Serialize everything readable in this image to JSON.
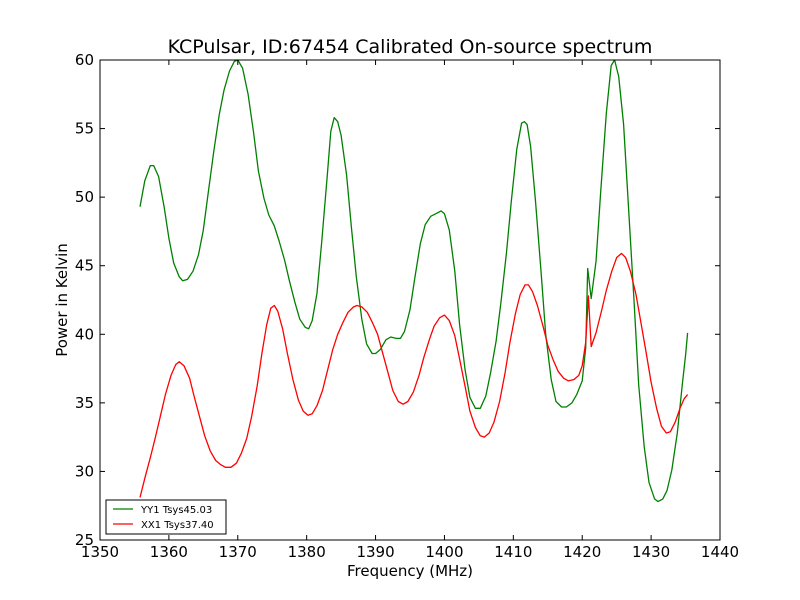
{
  "chart_data": {
    "type": "line",
    "title": "KCPulsar, ID:67454 Calibrated On-source spectrum",
    "xlabel": "Frequency (MHz)",
    "ylabel": "Power in Kelvin",
    "xlim": [
      1350,
      1440
    ],
    "ylim": [
      25,
      60
    ],
    "x_ticks": [
      1350,
      1360,
      1370,
      1380,
      1390,
      1400,
      1410,
      1420,
      1430,
      1440
    ],
    "y_ticks": [
      25,
      30,
      35,
      40,
      45,
      50,
      55,
      60
    ],
    "grid": false,
    "legend_position": "lower-left",
    "series": [
      {
        "name": "YY1 Tsys45.03",
        "color": "#008000",
        "points": [
          [
            1355.8,
            49.3
          ],
          [
            1356.5,
            51.2
          ],
          [
            1357.3,
            52.3
          ],
          [
            1357.8,
            52.3
          ],
          [
            1358.5,
            51.5
          ],
          [
            1359.3,
            49.3
          ],
          [
            1360.0,
            47.0
          ],
          [
            1360.7,
            45.2
          ],
          [
            1361.5,
            44.2
          ],
          [
            1362.0,
            43.9
          ],
          [
            1362.7,
            44.0
          ],
          [
            1363.5,
            44.6
          ],
          [
            1364.3,
            45.8
          ],
          [
            1365.0,
            47.6
          ],
          [
            1365.7,
            50.3
          ],
          [
            1366.5,
            53.3
          ],
          [
            1367.3,
            56.0
          ],
          [
            1368.0,
            57.8
          ],
          [
            1368.8,
            59.2
          ],
          [
            1369.5,
            59.9
          ],
          [
            1370.0,
            60.0
          ],
          [
            1370.7,
            59.4
          ],
          [
            1371.5,
            57.5
          ],
          [
            1372.3,
            54.7
          ],
          [
            1373.0,
            51.9
          ],
          [
            1373.8,
            49.9
          ],
          [
            1374.5,
            48.7
          ],
          [
            1375.3,
            47.9
          ],
          [
            1376.0,
            46.8
          ],
          [
            1376.8,
            45.4
          ],
          [
            1377.5,
            43.9
          ],
          [
            1378.3,
            42.3
          ],
          [
            1379.0,
            41.1
          ],
          [
            1379.8,
            40.5
          ],
          [
            1380.3,
            40.4
          ],
          [
            1380.8,
            41.0
          ],
          [
            1381.5,
            43.0
          ],
          [
            1382.2,
            46.8
          ],
          [
            1383.0,
            51.6
          ],
          [
            1383.5,
            54.8
          ],
          [
            1384.0,
            55.8
          ],
          [
            1384.5,
            55.5
          ],
          [
            1385.0,
            54.5
          ],
          [
            1385.8,
            51.6
          ],
          [
            1386.5,
            47.8
          ],
          [
            1387.2,
            44.2
          ],
          [
            1388.0,
            41.1
          ],
          [
            1388.7,
            39.3
          ],
          [
            1389.5,
            38.6
          ],
          [
            1390.0,
            38.6
          ],
          [
            1390.7,
            38.9
          ],
          [
            1391.5,
            39.6
          ],
          [
            1392.2,
            39.8
          ],
          [
            1393.0,
            39.7
          ],
          [
            1393.6,
            39.7
          ],
          [
            1394.2,
            40.2
          ],
          [
            1395.0,
            41.8
          ],
          [
            1395.7,
            44.1
          ],
          [
            1396.5,
            46.6
          ],
          [
            1397.2,
            48.0
          ],
          [
            1398.0,
            48.6
          ],
          [
            1398.8,
            48.8
          ],
          [
            1399.5,
            49.0
          ],
          [
            1400.0,
            48.8
          ],
          [
            1400.7,
            47.6
          ],
          [
            1401.5,
            44.6
          ],
          [
            1402.2,
            40.7
          ],
          [
            1403.0,
            37.4
          ],
          [
            1403.7,
            35.4
          ],
          [
            1404.5,
            34.6
          ],
          [
            1405.2,
            34.6
          ],
          [
            1406.0,
            35.5
          ],
          [
            1406.7,
            37.2
          ],
          [
            1407.5,
            39.5
          ],
          [
            1408.2,
            42.3
          ],
          [
            1409.0,
            45.9
          ],
          [
            1409.7,
            49.7
          ],
          [
            1410.5,
            53.5
          ],
          [
            1411.2,
            55.4
          ],
          [
            1411.6,
            55.5
          ],
          [
            1412.0,
            55.3
          ],
          [
            1412.5,
            53.7
          ],
          [
            1413.2,
            49.8
          ],
          [
            1414.0,
            44.7
          ],
          [
            1414.7,
            40.0
          ],
          [
            1415.5,
            36.7
          ],
          [
            1416.2,
            35.1
          ],
          [
            1417.0,
            34.7
          ],
          [
            1417.7,
            34.7
          ],
          [
            1418.5,
            35.0
          ],
          [
            1419.2,
            35.6
          ],
          [
            1420.0,
            36.6
          ],
          [
            1420.5,
            39.0
          ],
          [
            1420.8,
            44.8
          ],
          [
            1421.3,
            42.6
          ],
          [
            1422.0,
            45.3
          ],
          [
            1422.7,
            50.5
          ],
          [
            1423.5,
            56.1
          ],
          [
            1424.2,
            59.6
          ],
          [
            1424.7,
            60.0
          ],
          [
            1425.3,
            58.8
          ],
          [
            1426.0,
            55.3
          ],
          [
            1426.7,
            49.4
          ],
          [
            1427.5,
            42.6
          ],
          [
            1428.2,
            36.3
          ],
          [
            1429.0,
            31.8
          ],
          [
            1429.7,
            29.2
          ],
          [
            1430.5,
            28.0
          ],
          [
            1431.0,
            27.8
          ],
          [
            1431.7,
            28.0
          ],
          [
            1432.3,
            28.6
          ],
          [
            1433.0,
            30.1
          ],
          [
            1433.8,
            32.8
          ],
          [
            1434.5,
            36.2
          ],
          [
            1435.0,
            38.5
          ],
          [
            1435.3,
            40.1
          ]
        ]
      },
      {
        "name": "XX1 Tsys37.40",
        "color": "#ff0000",
        "points": [
          [
            1355.8,
            28.1
          ],
          [
            1356.5,
            29.5
          ],
          [
            1357.3,
            31.0
          ],
          [
            1358.0,
            32.4
          ],
          [
            1358.8,
            34.1
          ],
          [
            1359.5,
            35.6
          ],
          [
            1360.3,
            37.0
          ],
          [
            1361.0,
            37.8
          ],
          [
            1361.5,
            38.0
          ],
          [
            1362.2,
            37.7
          ],
          [
            1363.0,
            36.8
          ],
          [
            1363.7,
            35.4
          ],
          [
            1364.5,
            33.9
          ],
          [
            1365.2,
            32.6
          ],
          [
            1366.0,
            31.5
          ],
          [
            1366.8,
            30.8
          ],
          [
            1367.5,
            30.5
          ],
          [
            1368.2,
            30.3
          ],
          [
            1369.0,
            30.3
          ],
          [
            1369.8,
            30.6
          ],
          [
            1370.5,
            31.3
          ],
          [
            1371.3,
            32.4
          ],
          [
            1372.0,
            34.0
          ],
          [
            1372.8,
            36.2
          ],
          [
            1373.5,
            38.6
          ],
          [
            1374.2,
            40.7
          ],
          [
            1374.8,
            41.9
          ],
          [
            1375.3,
            42.1
          ],
          [
            1375.8,
            41.7
          ],
          [
            1376.5,
            40.4
          ],
          [
            1377.2,
            38.6
          ],
          [
            1378.0,
            36.7
          ],
          [
            1378.8,
            35.2
          ],
          [
            1379.5,
            34.4
          ],
          [
            1380.2,
            34.1
          ],
          [
            1380.8,
            34.2
          ],
          [
            1381.5,
            34.8
          ],
          [
            1382.3,
            35.9
          ],
          [
            1383.0,
            37.3
          ],
          [
            1383.8,
            38.9
          ],
          [
            1384.5,
            40.0
          ],
          [
            1385.3,
            40.9
          ],
          [
            1386.0,
            41.6
          ],
          [
            1386.8,
            42.0
          ],
          [
            1387.3,
            42.1
          ],
          [
            1388.0,
            42.0
          ],
          [
            1388.8,
            41.6
          ],
          [
            1389.5,
            40.9
          ],
          [
            1390.3,
            40.0
          ],
          [
            1391.0,
            38.7
          ],
          [
            1391.8,
            37.2
          ],
          [
            1392.5,
            35.9
          ],
          [
            1393.3,
            35.1
          ],
          [
            1394.0,
            34.9
          ],
          [
            1394.7,
            35.1
          ],
          [
            1395.5,
            35.8
          ],
          [
            1396.3,
            37.0
          ],
          [
            1397.0,
            38.3
          ],
          [
            1397.8,
            39.6
          ],
          [
            1398.5,
            40.6
          ],
          [
            1399.3,
            41.2
          ],
          [
            1400.0,
            41.4
          ],
          [
            1400.7,
            41.0
          ],
          [
            1401.5,
            39.9
          ],
          [
            1402.2,
            38.2
          ],
          [
            1403.0,
            36.2
          ],
          [
            1403.7,
            34.4
          ],
          [
            1404.5,
            33.2
          ],
          [
            1405.2,
            32.6
          ],
          [
            1405.8,
            32.5
          ],
          [
            1406.5,
            32.8
          ],
          [
            1407.2,
            33.6
          ],
          [
            1408.0,
            35.1
          ],
          [
            1408.8,
            37.2
          ],
          [
            1409.5,
            39.4
          ],
          [
            1410.3,
            41.5
          ],
          [
            1411.0,
            42.9
          ],
          [
            1411.7,
            43.6
          ],
          [
            1412.2,
            43.6
          ],
          [
            1412.8,
            43.1
          ],
          [
            1413.5,
            42.1
          ],
          [
            1414.3,
            40.6
          ],
          [
            1415.0,
            39.2
          ],
          [
            1415.8,
            38.1
          ],
          [
            1416.5,
            37.3
          ],
          [
            1417.3,
            36.8
          ],
          [
            1418.0,
            36.6
          ],
          [
            1418.8,
            36.7
          ],
          [
            1419.5,
            37.0
          ],
          [
            1420.0,
            37.7
          ],
          [
            1420.5,
            39.4
          ],
          [
            1420.9,
            42.8
          ],
          [
            1421.3,
            39.1
          ],
          [
            1422.0,
            40.1
          ],
          [
            1422.8,
            41.7
          ],
          [
            1423.5,
            43.2
          ],
          [
            1424.3,
            44.6
          ],
          [
            1425.0,
            45.6
          ],
          [
            1425.7,
            45.9
          ],
          [
            1426.3,
            45.6
          ],
          [
            1427.0,
            44.6
          ],
          [
            1427.8,
            42.9
          ],
          [
            1428.5,
            40.9
          ],
          [
            1429.3,
            38.6
          ],
          [
            1430.0,
            36.5
          ],
          [
            1430.8,
            34.6
          ],
          [
            1431.5,
            33.3
          ],
          [
            1432.2,
            32.8
          ],
          [
            1432.8,
            32.9
          ],
          [
            1433.5,
            33.6
          ],
          [
            1434.2,
            34.6
          ],
          [
            1434.8,
            35.3
          ],
          [
            1435.3,
            35.6
          ]
        ]
      }
    ]
  }
}
